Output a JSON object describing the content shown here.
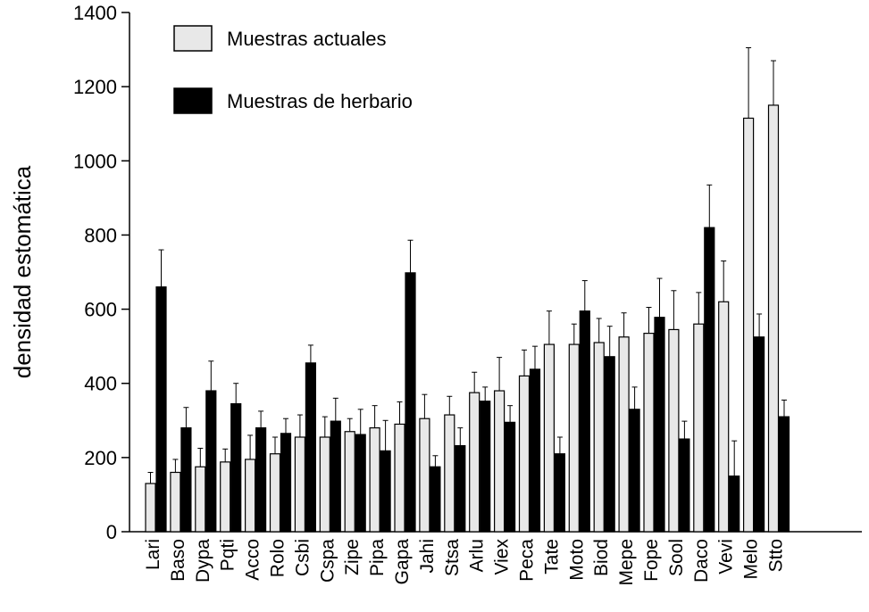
{
  "chart_data": {
    "type": "bar",
    "title": "",
    "xlabel": "",
    "ylabel": "densidad estomática",
    "ylim": [
      0,
      1400
    ],
    "yticks": [
      0,
      200,
      400,
      600,
      800,
      1000,
      1200,
      1400
    ],
    "grid": false,
    "legend_position": "top-left",
    "categories": [
      "Lari",
      "Baso",
      "Dypa",
      "Pqti",
      "Acco",
      "Rolo",
      "Csbi",
      "Cspa",
      "Zipe",
      "Pipa",
      "Gapa",
      "Jahi",
      "Stsa",
      "Arlu",
      "Viex",
      "Peca",
      "Tate",
      "Moto",
      "Biod",
      "Mepe",
      "Fope",
      "Sool",
      "Daco",
      "Vevi",
      "Melo",
      "Stto"
    ],
    "series": [
      {
        "name": "Muestras actuales",
        "color": "#e8e8e8",
        "values": [
          130,
          160,
          175,
          188,
          195,
          210,
          255,
          255,
          270,
          280,
          290,
          305,
          315,
          375,
          380,
          420,
          505,
          505,
          510,
          525,
          535,
          545,
          560,
          620,
          1115,
          1150
        ],
        "errors": [
          30,
          35,
          50,
          35,
          65,
          45,
          60,
          55,
          35,
          60,
          60,
          65,
          50,
          55,
          90,
          70,
          90,
          55,
          65,
          65,
          70,
          105,
          85,
          110,
          190,
          120
        ]
      },
      {
        "name": "Muestras de herbario",
        "color": "#000000",
        "values": [
          660,
          280,
          380,
          345,
          280,
          265,
          455,
          298,
          262,
          218,
          698,
          175,
          232,
          352,
          295,
          438,
          210,
          595,
          472,
          330,
          578,
          250,
          820,
          150,
          525,
          310
        ],
        "errors": [
          100,
          55,
          80,
          55,
          45,
          40,
          48,
          62,
          68,
          82,
          88,
          30,
          48,
          38,
          45,
          62,
          45,
          82,
          82,
          60,
          105,
          48,
          115,
          95,
          62,
          45
        ]
      }
    ]
  }
}
